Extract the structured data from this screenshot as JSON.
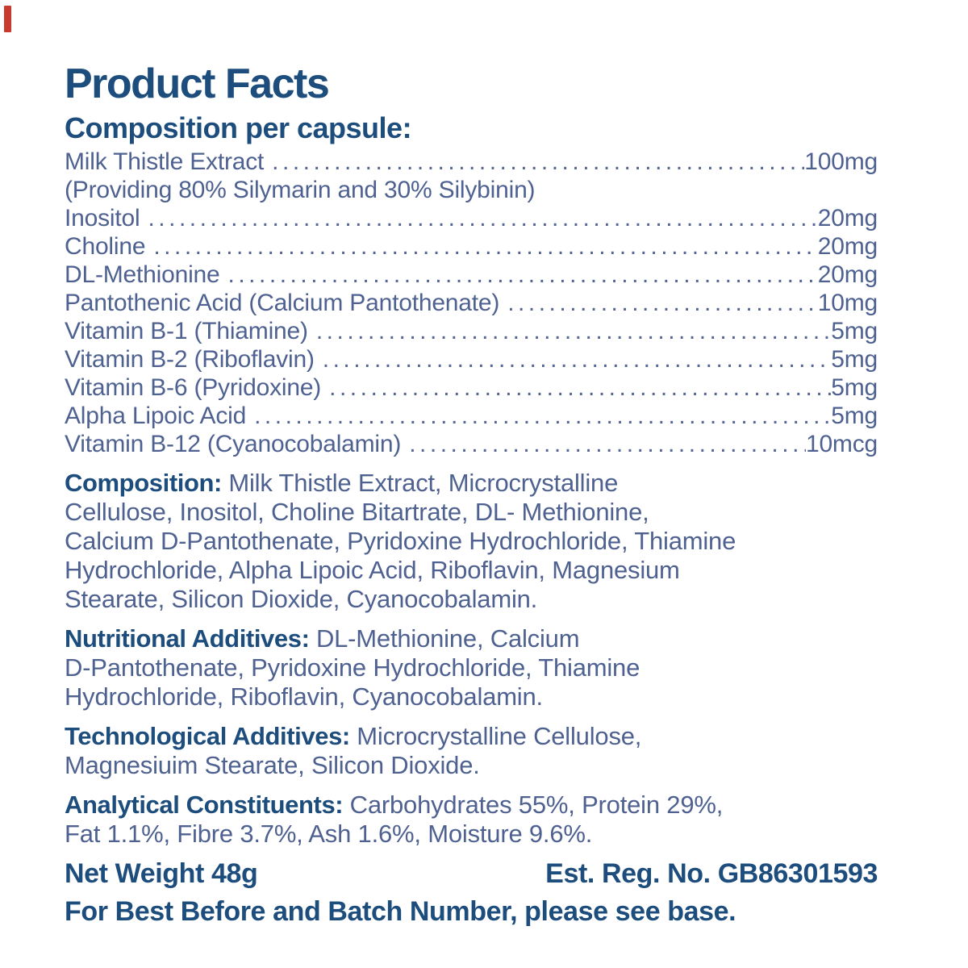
{
  "colors": {
    "heading": "#1d4d7c",
    "body_text": "#4e6190",
    "artifact_red": "#c8392e"
  },
  "title": "Product Facts",
  "composition_heading": "Composition per capsule:",
  "providing_note": "(Providing 80% Silymarin and 30% Silybinin)",
  "ingredients": [
    {
      "name": "Milk Thistle Extract",
      "amount": "100mg"
    },
    {
      "name": "Inositol",
      "amount": "20mg"
    },
    {
      "name": "Choline",
      "amount": "20mg"
    },
    {
      "name": "DL-Methionine",
      "amount": "20mg"
    },
    {
      "name": "Pantothenic Acid (Calcium Pantothenate)",
      "amount": "10mg"
    },
    {
      "name": "Vitamin B-1 (Thiamine)",
      "amount": "5mg"
    },
    {
      "name": "Vitamin B-2 (Riboflavin)",
      "amount": "5mg"
    },
    {
      "name": "Vitamin B-6 (Pyridoxine)",
      "amount": "5mg"
    },
    {
      "name": "Alpha Lipoic Acid",
      "amount": "5mg"
    },
    {
      "name": "Vitamin B-12 (Cyanocobalamin)",
      "amount": "10mcg"
    }
  ],
  "sections": [
    {
      "label": "Composition:",
      "lines": [
        "Milk Thistle Extract, Microcrystalline",
        "Cellulose, Inositol, Choline Bitartrate, DL- Methionine,",
        "Calcium D-Pantothenate, Pyridoxine Hydrochloride, Thiamine",
        "Hydrochloride, Alpha Lipoic Acid, Riboflavin, Magnesium",
        "Stearate, Silicon Dioxide, Cyanocobalamin."
      ]
    },
    {
      "label": "Nutritional Additives:",
      "lines": [
        "DL-Methionine, Calcium",
        "D-Pantothenate, Pyridoxine Hydrochloride, Thiamine",
        "Hydrochloride, Riboflavin, Cyanocobalamin."
      ]
    },
    {
      "label": "Technological Additives:",
      "lines": [
        "Microcrystalline Cellulose,",
        "Magnesiuim Stearate, Silicon Dioxide."
      ]
    },
    {
      "label": "Analytical Constituents:",
      "lines": [
        "Carbohydrates 55%, Protein 29%,",
        "Fat 1.1%, Fibre 3.7%, Ash 1.6%, Moisture 9.6%."
      ]
    }
  ],
  "footer": {
    "net_weight": "Net Weight 48g",
    "est_reg": "Est. Reg. No. GB86301593",
    "base_note": "For Best Before and Batch Number, please see base."
  }
}
